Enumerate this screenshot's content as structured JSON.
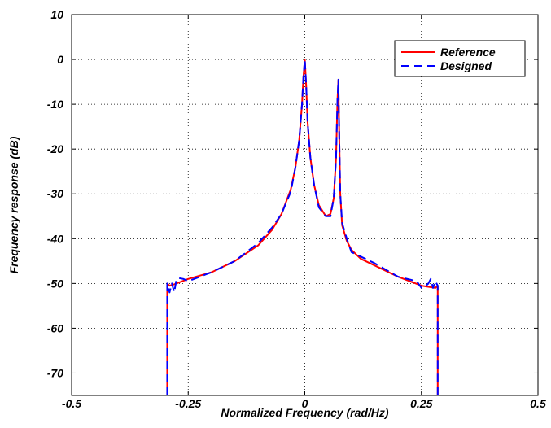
{
  "chart_data": {
    "type": "line",
    "title": "",
    "xlabel": "Normalized Frequency (rad/Hz)",
    "ylabel": "Frequency response (dB)",
    "xlim": [
      -0.5,
      0.5
    ],
    "ylim": [
      -75,
      10
    ],
    "x_ticks": [
      -0.5,
      -0.25,
      0,
      0.25,
      0.5
    ],
    "x_tick_labels": [
      "-0.5",
      "-0.25",
      "0",
      "0.25",
      "0.5"
    ],
    "y_ticks": [
      10,
      0,
      -10,
      -20,
      -30,
      -40,
      -50,
      -60,
      -70
    ],
    "y_tick_labels": [
      "10",
      "0",
      "-10",
      "-20",
      "-30",
      "-40",
      "-50",
      "-60",
      "-70"
    ],
    "grid": true,
    "legend": {
      "placement": "top-right"
    },
    "series": [
      {
        "name": "Reference",
        "color": "#ff0000",
        "dash": "solid",
        "x": [
          -0.295,
          -0.295,
          -0.29,
          -0.28,
          -0.25,
          -0.2,
          -0.15,
          -0.1,
          -0.07,
          -0.05,
          -0.03,
          -0.02,
          -0.012,
          -0.006,
          -0.003,
          0.0,
          0.003,
          0.006,
          0.012,
          0.02,
          0.03,
          0.045,
          0.055,
          0.062,
          0.067,
          0.07,
          0.072,
          0.074,
          0.076,
          0.08,
          0.09,
          0.1,
          0.12,
          0.15,
          0.2,
          0.25,
          0.28,
          0.285,
          0.285
        ],
        "y": [
          -75,
          -50,
          -50.5,
          -50.2,
          -49,
          -47.5,
          -45,
          -41.5,
          -38,
          -34.5,
          -29,
          -24,
          -18,
          -10,
          -4,
          0,
          -6,
          -14,
          -22,
          -28,
          -32.5,
          -35,
          -34.5,
          -31,
          -22,
          -9,
          -4.5,
          -18,
          -30,
          -37,
          -40.5,
          -42.5,
          -44.5,
          -46,
          -48.5,
          -50.5,
          -51,
          -50.5,
          -75
        ]
      },
      {
        "name": "Designed",
        "color": "#0000ff",
        "dash": "dashed",
        "x": [
          -0.295,
          -0.295,
          -0.29,
          -0.285,
          -0.28,
          -0.275,
          -0.27,
          -0.26,
          -0.25,
          -0.2,
          -0.15,
          -0.1,
          -0.07,
          -0.05,
          -0.03,
          -0.02,
          -0.012,
          -0.006,
          -0.003,
          0.0,
          0.003,
          0.006,
          0.012,
          0.02,
          0.03,
          0.045,
          0.055,
          0.062,
          0.067,
          0.07,
          0.072,
          0.074,
          0.076,
          0.08,
          0.09,
          0.1,
          0.12,
          0.15,
          0.2,
          0.24,
          0.25,
          0.26,
          0.265,
          0.27,
          0.275,
          0.28,
          0.285,
          0.285
        ],
        "y": [
          -75,
          -50,
          -52,
          -50,
          -52,
          -49,
          -48.8,
          -49,
          -49.5,
          -47.5,
          -45,
          -41,
          -37.5,
          -34.5,
          -29.5,
          -24,
          -18,
          -10,
          -4,
          0,
          -6,
          -14,
          -22,
          -28,
          -33,
          -35,
          -35,
          -31,
          -22,
          -9,
          -4.5,
          -18,
          -30,
          -36.5,
          -40,
          -43,
          -44,
          -45.5,
          -48.5,
          -49.5,
          -51,
          -50.5,
          -50,
          -49,
          -51,
          -49.5,
          -50.5,
          -75
        ]
      }
    ]
  }
}
